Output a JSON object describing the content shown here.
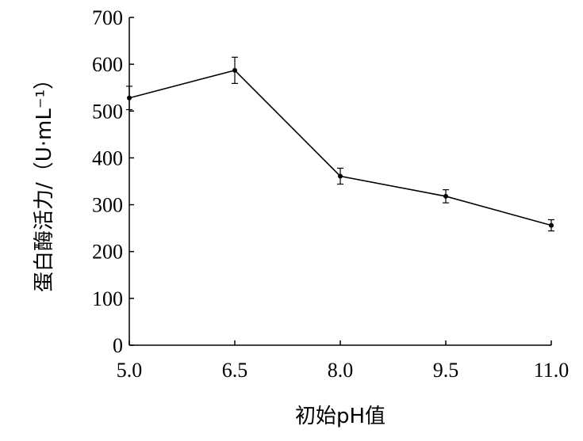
{
  "chart_data": {
    "type": "line",
    "xlabel": "初始pH值",
    "ylabel": "蛋白酶活力/（U·mL⁻¹）",
    "x_tick_labels": [
      "5.0",
      "6.5",
      "8.0",
      "9.5",
      "11.0"
    ],
    "y_tick_labels": [
      "0",
      "100",
      "200",
      "300",
      "400",
      "500",
      "600",
      "700"
    ],
    "xlim": [
      5.0,
      11.0
    ],
    "ylim": [
      0,
      700
    ],
    "grid": false,
    "series": [
      {
        "x": [
          5.0,
          6.5,
          8.0,
          9.5,
          11.0
        ],
        "values": [
          528,
          587,
          361,
          318,
          256
        ],
        "error": [
          25,
          28,
          17,
          14,
          12
        ]
      }
    ],
    "colors": {
      "line": "#000000",
      "axis": "#000000"
    }
  }
}
